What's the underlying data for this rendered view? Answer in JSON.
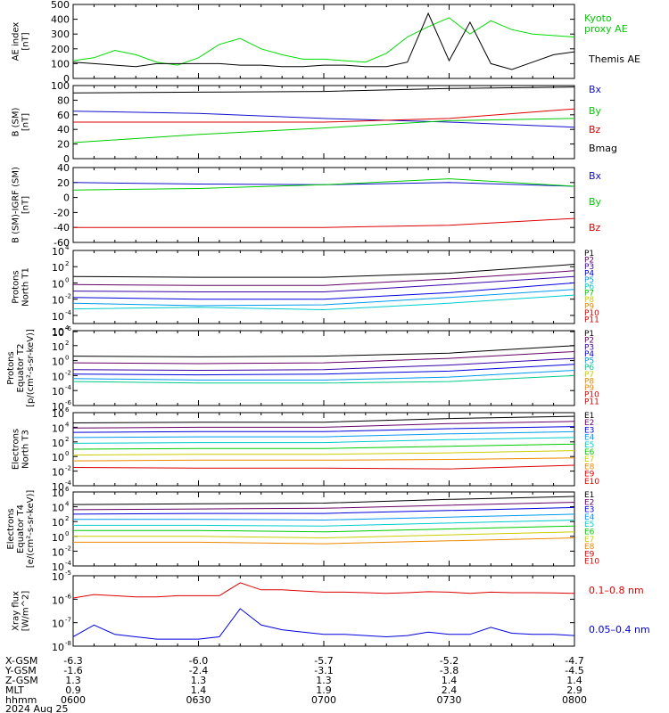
{
  "chart_data": [
    {
      "type": "line",
      "ylabel": "AE index [nT]",
      "ylim": [
        0,
        500
      ],
      "yticks": [
        "0",
        "100",
        "200",
        "300",
        "400",
        "500"
      ],
      "yscale": "linear",
      "x": [
        0,
        5,
        10,
        15,
        20,
        25,
        30,
        35,
        40,
        45,
        50,
        55,
        60,
        65,
        70,
        75,
        80,
        85,
        90,
        95,
        100,
        105,
        110,
        115,
        120
      ],
      "series": [
        {
          "name": "Kyoto proxy AE",
          "color": "#00dd00",
          "values": [
            120,
            140,
            190,
            160,
            110,
            90,
            140,
            230,
            270,
            200,
            160,
            130,
            130,
            120,
            110,
            170,
            280,
            350,
            410,
            300,
            390,
            330,
            300,
            290,
            280
          ]
        },
        {
          "name": "Themis AE",
          "color": "#000000",
          "values": [
            110,
            100,
            90,
            80,
            100,
            100,
            100,
            100,
            90,
            90,
            80,
            80,
            90,
            90,
            80,
            80,
            110,
            440,
            120,
            380,
            100,
            60,
            110,
            160,
            180
          ]
        }
      ]
    },
    {
      "type": "line",
      "ylabel": "B (SM) [nT]",
      "ylim": [
        0,
        100
      ],
      "yticks": [
        "0",
        "20",
        "40",
        "60",
        "80",
        "100"
      ],
      "yscale": "linear",
      "x": [
        0,
        30,
        60,
        90,
        120
      ],
      "series": [
        {
          "name": "Bx",
          "color": "#1010cc",
          "values": [
            65,
            62,
            55,
            50,
            43
          ]
        },
        {
          "name": "By",
          "color": "#00cc00",
          "values": [
            22,
            33,
            42,
            52,
            55
          ]
        },
        {
          "name": "Bz",
          "color": "#dd0000",
          "values": [
            50,
            50,
            50,
            55,
            68
          ]
        },
        {
          "name": "Bmag",
          "color": "#000000",
          "values": [
            90,
            91,
            92,
            96,
            98
          ]
        }
      ]
    },
    {
      "type": "line",
      "ylabel": "B (SM)-IGRF (SM) [nT]",
      "ylim": [
        -60,
        40
      ],
      "yticks": [
        "-60",
        "-40",
        "-20",
        "0",
        "20",
        "40"
      ],
      "yscale": "linear",
      "x": [
        0,
        30,
        60,
        90,
        120
      ],
      "series": [
        {
          "name": "Bx",
          "color": "#1010cc",
          "values": [
            20,
            18,
            17,
            20,
            15
          ]
        },
        {
          "name": "By",
          "color": "#00cc00",
          "values": [
            10,
            12,
            17,
            25,
            15
          ]
        },
        {
          "name": "Bz",
          "color": "#dd0000",
          "values": [
            -40,
            -40,
            -40,
            -37,
            -28
          ]
        }
      ]
    },
    {
      "type": "line",
      "ylabel": "Protons North T1",
      "ylim": [
        -5,
        4
      ],
      "yticks": [
        "10^4",
        "10^2",
        "10^0",
        "10^-2",
        "10^-4",
        "10^-6"
      ],
      "yscale": "log",
      "x": [
        0,
        30,
        60,
        90,
        120
      ],
      "series": [
        {
          "name": "P1",
          "color": "#000000",
          "values": [
            0.8,
            0.7,
            0.7,
            1.2,
            2.3
          ]
        },
        {
          "name": "P2",
          "color": "#660066",
          "values": [
            -0.2,
            -0.3,
            -0.3,
            0.5,
            1.5
          ]
        },
        {
          "name": "P3",
          "color": "#3a00aa",
          "values": [
            -1.0,
            -1.1,
            -1.1,
            -0.2,
            0.8
          ]
        },
        {
          "name": "P4",
          "color": "#0000dd",
          "values": [
            -1.8,
            -2.0,
            -2.0,
            -1.2,
            0.0
          ]
        },
        {
          "name": "P5",
          "color": "#0099ee",
          "values": [
            -2.5,
            -2.8,
            -2.7,
            -1.8,
            -0.8
          ]
        },
        {
          "name": "P6",
          "color": "#00cccc",
          "values": [
            -3.2,
            -3.0,
            -3.3,
            -2.5,
            -1.5
          ]
        }
      ],
      "legend": [
        "P1",
        "P2",
        "P3",
        "P4",
        "P5",
        "P6",
        "P7",
        "P8",
        "P9",
        "P10",
        "P11"
      ]
    },
    {
      "type": "line",
      "ylabel": "Protons Equator T2 [p/(cm^2-s-sr-keV)]",
      "ylim": [
        -6,
        4
      ],
      "yticks": [
        "10^4",
        "10^2",
        "10^0",
        "10^-2",
        "10^-4",
        "10^-6"
      ],
      "yscale": "log",
      "x": [
        0,
        30,
        60,
        90,
        120
      ],
      "series": [
        {
          "name": "P1",
          "color": "#000000",
          "values": [
            0.6,
            0.5,
            0.6,
            1.0,
            2.0
          ]
        },
        {
          "name": "P2",
          "color": "#660066",
          "values": [
            -0.3,
            -0.4,
            -0.3,
            0.3,
            1.2
          ]
        },
        {
          "name": "P3",
          "color": "#3a00aa",
          "values": [
            -1.2,
            -1.3,
            -1.2,
            -0.6,
            0.3
          ]
        },
        {
          "name": "P4",
          "color": "#0000dd",
          "values": [
            -1.8,
            -1.9,
            -1.8,
            -1.4,
            -0.5
          ]
        },
        {
          "name": "P5",
          "color": "#0099ee",
          "values": [
            -2.4,
            -2.6,
            -2.6,
            -2.2,
            -1.3
          ]
        },
        {
          "name": "P6",
          "color": "#00cc88",
          "values": [
            -2.8,
            -3.0,
            -3.0,
            -2.8,
            -2.0
          ]
        }
      ],
      "legend": [
        "P1",
        "P2",
        "P3",
        "P4",
        "P5",
        "P6",
        "P7",
        "P8",
        "P9",
        "P10",
        "P11"
      ]
    },
    {
      "type": "line",
      "ylabel": "Electrons North T3",
      "ylim": [
        -4,
        6
      ],
      "yticks": [
        "10^6",
        "10^4",
        "10^2",
        "10^0",
        "10^-2",
        "10^-4"
      ],
      "yscale": "log",
      "x": [
        0,
        30,
        60,
        90,
        120
      ],
      "series": [
        {
          "name": "E1",
          "color": "#000000",
          "values": [
            4.6,
            4.7,
            4.7,
            5.2,
            5.5
          ]
        },
        {
          "name": "E2",
          "color": "#660066",
          "values": [
            3.9,
            4.0,
            4.0,
            4.5,
            4.8
          ]
        },
        {
          "name": "E3",
          "color": "#0000dd",
          "values": [
            3.3,
            3.4,
            3.4,
            3.8,
            4.1
          ]
        },
        {
          "name": "E4",
          "color": "#0099ee",
          "values": [
            2.6,
            2.7,
            2.7,
            3.1,
            3.4
          ]
        },
        {
          "name": "E5",
          "color": "#00cccc",
          "values": [
            1.8,
            1.9,
            1.9,
            2.3,
            2.6
          ]
        },
        {
          "name": "E6",
          "color": "#00cc00",
          "values": [
            1.0,
            1.1,
            1.1,
            1.4,
            1.7
          ]
        },
        {
          "name": "E7",
          "color": "#cccc00",
          "values": [
            0.2,
            0.3,
            0.3,
            0.5,
            0.8
          ]
        },
        {
          "name": "E8",
          "color": "#ee8800",
          "values": [
            -0.6,
            -0.5,
            -0.5,
            -0.4,
            -0.2
          ]
        },
        {
          "name": "E9",
          "color": "#dd0000",
          "values": [
            -1.5,
            -1.6,
            -1.6,
            -1.7,
            -1.2
          ]
        }
      ],
      "legend": [
        "E1",
        "E2",
        "E3",
        "E4",
        "E5",
        "E6",
        "E7",
        "E8",
        "E9",
        "E10"
      ]
    },
    {
      "type": "line",
      "ylabel": "Electrons Equator T4 [e/(cm^2-s-sr-keV)]",
      "ylim": [
        -4,
        6
      ],
      "yticks": [
        "10^6",
        "10^4",
        "10^2",
        "10^0",
        "10^-2",
        "10^-4"
      ],
      "yscale": "log",
      "x": [
        0,
        30,
        60,
        90,
        120
      ],
      "series": [
        {
          "name": "E1",
          "color": "#000000",
          "values": [
            4.3,
            4.4,
            4.5,
            5.0,
            5.4
          ]
        },
        {
          "name": "E2",
          "color": "#660066",
          "values": [
            3.6,
            3.7,
            3.8,
            4.2,
            4.6
          ]
        },
        {
          "name": "E3",
          "color": "#0000dd",
          "values": [
            3.0,
            3.1,
            3.1,
            3.5,
            3.9
          ]
        },
        {
          "name": "E4",
          "color": "#0099ee",
          "values": [
            2.3,
            2.3,
            2.2,
            2.6,
            3.0
          ]
        },
        {
          "name": "E5",
          "color": "#00cccc",
          "values": [
            1.5,
            1.5,
            1.4,
            1.8,
            2.2
          ]
        },
        {
          "name": "E6",
          "color": "#00cc00",
          "values": [
            0.8,
            0.8,
            0.6,
            1.0,
            1.4
          ]
        },
        {
          "name": "E7",
          "color": "#cccc00",
          "values": [
            0.0,
            0.0,
            -0.2,
            0.2,
            0.6
          ]
        },
        {
          "name": "E8",
          "color": "#ee8800",
          "values": [
            -0.8,
            -0.8,
            -1.0,
            -0.6,
            -0.2
          ]
        }
      ],
      "legend": [
        "E1",
        "E2",
        "E3",
        "E4",
        "E5",
        "E6",
        "E7",
        "E8",
        "E9",
        "E10"
      ]
    },
    {
      "type": "line",
      "ylabel": "Xray flux [W/m^2]",
      "ylim": [
        -8,
        -5
      ],
      "yticks": [
        "10^-5",
        "10^-6",
        "10^-7",
        "10^-8"
      ],
      "yscale": "log",
      "x": [
        0,
        5,
        10,
        15,
        20,
        25,
        30,
        35,
        40,
        45,
        50,
        55,
        60,
        65,
        70,
        75,
        80,
        85,
        90,
        95,
        100,
        105,
        110,
        115,
        120
      ],
      "series": [
        {
          "name": "0.1–0.8 nm",
          "color": "#dd0000",
          "values": [
            -5.95,
            -5.8,
            -5.85,
            -5.9,
            -5.9,
            -5.85,
            -5.85,
            -5.85,
            -5.3,
            -5.6,
            -5.6,
            -5.65,
            -5.7,
            -5.7,
            -5.72,
            -5.75,
            -5.72,
            -5.68,
            -5.7,
            -5.75,
            -5.7,
            -5.72,
            -5.72,
            -5.73,
            -5.75
          ]
        },
        {
          "name": "0.05–0.4 nm",
          "color": "#0000dd",
          "values": [
            -7.6,
            -7.1,
            -7.5,
            -7.6,
            -7.7,
            -7.7,
            -7.7,
            -7.6,
            -6.4,
            -7.1,
            -7.3,
            -7.4,
            -7.5,
            -7.5,
            -7.55,
            -7.6,
            -7.55,
            -7.4,
            -7.5,
            -7.5,
            -7.2,
            -7.45,
            -7.5,
            -7.5,
            -7.55
          ]
        }
      ]
    }
  ],
  "xaxis": {
    "rows": [
      {
        "label": "X-GSM",
        "values": [
          "-6.3",
          "-6.0",
          "-5.7",
          "-5.2",
          "-4.7"
        ]
      },
      {
        "label": "Y-GSM",
        "values": [
          "-1.6",
          "-2.4",
          "-3.1",
          "-3.8",
          "-4.5"
        ]
      },
      {
        "label": "Z-GSM",
        "values": [
          "1.3",
          "1.3",
          "1.3",
          "1.4",
          "1.4"
        ]
      },
      {
        "label": "MLT",
        "values": [
          "0.9",
          "1.4",
          "1.9",
          "2.4",
          "2.9"
        ]
      },
      {
        "label": "hhmm",
        "values": [
          "0600",
          "0630",
          "0700",
          "0730",
          "0800"
        ]
      }
    ],
    "date": "2024 Aug 25"
  },
  "legend_labels": {
    "ae": [
      "Kyoto",
      "proxy AE",
      "Themis AE"
    ],
    "xray": [
      "0.1–0.8 nm",
      "0.05–0.4 nm"
    ]
  }
}
